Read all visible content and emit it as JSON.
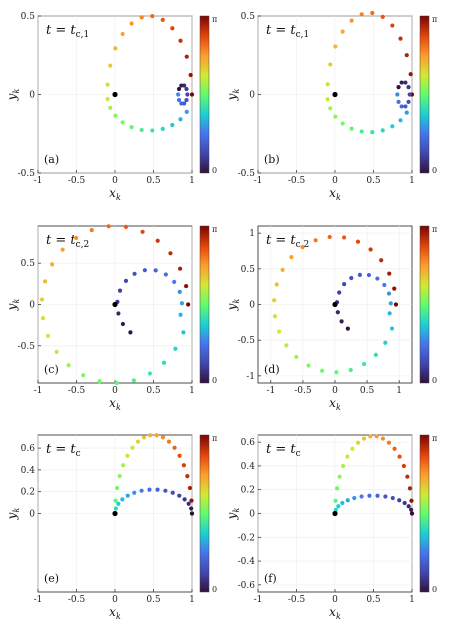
{
  "chart_data": [
    {
      "type": "scatter",
      "panel_label": "(a)",
      "annotation_var": "t",
      "annotation_eq": " = ",
      "annotation_rhs": "t",
      "annotation_sub": "c,1",
      "xlabel": "x",
      "xlabel_sub": "k",
      "ylabel": "y",
      "ylabel_sub": "k",
      "xlim": [
        -1,
        1
      ],
      "ylim": [
        -0.5,
        0.5
      ],
      "xticks": [
        "-1",
        "-0.5",
        "0",
        "0.5",
        "1"
      ],
      "yticks": [
        "-0.5",
        "0",
        "0.5"
      ],
      "curve": {
        "kind": "spiral",
        "start": [
          1,
          0
        ],
        "loop_center": [
          0.88,
          0.0
        ],
        "loop_radius": 0.06,
        "n": 34,
        "ymax": 0.5,
        "ymin": -0.23
      },
      "origin": [
        0,
        0
      ],
      "colorbar": {
        "min_label": "0",
        "max_label": "π"
      }
    },
    {
      "type": "scatter",
      "panel_label": "(b)",
      "annotation_var": "t",
      "annotation_eq": " = ",
      "annotation_rhs": "t",
      "annotation_sub": "c,1",
      "xlabel": "x",
      "xlabel_sub": "k",
      "ylabel": "y",
      "ylabel_sub": "k",
      "xlim": [
        -1,
        1
      ],
      "ylim": [
        -0.5,
        0.5
      ],
      "xticks": [
        "-1",
        "-0.5",
        "0",
        "0.5",
        "1"
      ],
      "yticks": [
        "-0.5",
        "0",
        "0.5"
      ],
      "curve": {
        "kind": "spiral",
        "start": [
          1,
          0
        ],
        "loop_center": [
          0.89,
          0.0
        ],
        "loop_radius": 0.08,
        "n": 34,
        "ymax": 0.52,
        "ymin": -0.24
      },
      "origin": [
        0,
        0
      ],
      "colorbar": {
        "min_label": "0",
        "max_label": "π"
      }
    },
    {
      "type": "scatter",
      "panel_label": "(c)",
      "annotation_var": "t",
      "annotation_eq": " = ",
      "annotation_rhs": "t",
      "annotation_sub": "c,2",
      "xlabel": "x",
      "xlabel_sub": "k",
      "ylabel": "y",
      "ylabel_sub": "k",
      "xlim": [
        -1,
        1
      ],
      "ylim": [
        -0.95,
        0.95
      ],
      "xticks": [
        "-1",
        "-0.5",
        "0",
        "0.5",
        "1"
      ],
      "yticks": [
        "-0.5",
        "0",
        "0.5"
      ],
      "curve": {
        "kind": "double",
        "start": [
          1,
          0
        ],
        "outer_r": 0.95,
        "inner_r": 0.42,
        "n": 40
      },
      "origin": [
        0,
        0
      ],
      "colorbar": {
        "min_label": "0",
        "max_label": "π"
      }
    },
    {
      "type": "scatter",
      "panel_label": "(d)",
      "annotation_var": "t",
      "annotation_eq": " = ",
      "annotation_rhs": "t",
      "annotation_sub": "c,2",
      "xlabel": "x",
      "xlabel_sub": "k",
      "ylabel": "y",
      "ylabel_sub": "k",
      "xlim": [
        -1.2,
        1.2
      ],
      "ylim": [
        -1.1,
        1.1
      ],
      "xticks": [
        "-1",
        "-0.5",
        "0",
        "0.5",
        "1"
      ],
      "yticks": [
        "-1",
        "-0.5",
        "0",
        "0.5",
        "1"
      ],
      "curve": {
        "kind": "double",
        "start": [
          1,
          0
        ],
        "outer_r": 0.95,
        "inner_r": 0.42,
        "n": 40
      },
      "origin": [
        0,
        0
      ],
      "colorbar": {
        "min_label": "0",
        "max_label": "π"
      }
    },
    {
      "type": "scatter",
      "panel_label": "(e)",
      "annotation_var": "t",
      "annotation_eq": " = ",
      "annotation_rhs": "t",
      "annotation_sub": "c",
      "xlabel": "x",
      "xlabel_sub": "k",
      "ylabel": "y",
      "ylabel_sub": "k",
      "xlim": [
        -1,
        1
      ],
      "ylim": [
        -0.72,
        0.72
      ],
      "xticks": [
        "-1",
        "-0.5",
        "0",
        "0.5",
        "1"
      ],
      "yticks": [
        "0",
        "0.2",
        "0.4",
        "0.6"
      ],
      "curve": {
        "kind": "heart",
        "start": [
          1,
          0
        ],
        "outer_top": 0.72,
        "inner_top": 0.22,
        "n": 36
      },
      "origin": [
        0,
        0
      ],
      "colorbar": {
        "min_label": "0",
        "max_label": "π"
      }
    },
    {
      "type": "scatter",
      "panel_label": "(f)",
      "annotation_var": "t",
      "annotation_eq": " = ",
      "annotation_rhs": "t",
      "annotation_sub": "c",
      "xlabel": "x",
      "xlabel_sub": "k",
      "ylabel": "y",
      "ylabel_sub": "k",
      "xlim": [
        -1,
        1
      ],
      "ylim": [
        -0.66,
        0.66
      ],
      "xticks": [
        "-1",
        "-0.5",
        "0",
        "0.5",
        "1"
      ],
      "yticks": [
        "-0.6",
        "-0.4",
        "-0.2",
        "0",
        "0.2",
        "0.4",
        "0.6"
      ],
      "curve": {
        "kind": "heart",
        "start": [
          1,
          0
        ],
        "outer_top": 0.65,
        "inner_top": 0.15,
        "n": 36
      },
      "origin": [
        0,
        0
      ],
      "colorbar": {
        "min_label": "0",
        "max_label": "π"
      }
    }
  ]
}
